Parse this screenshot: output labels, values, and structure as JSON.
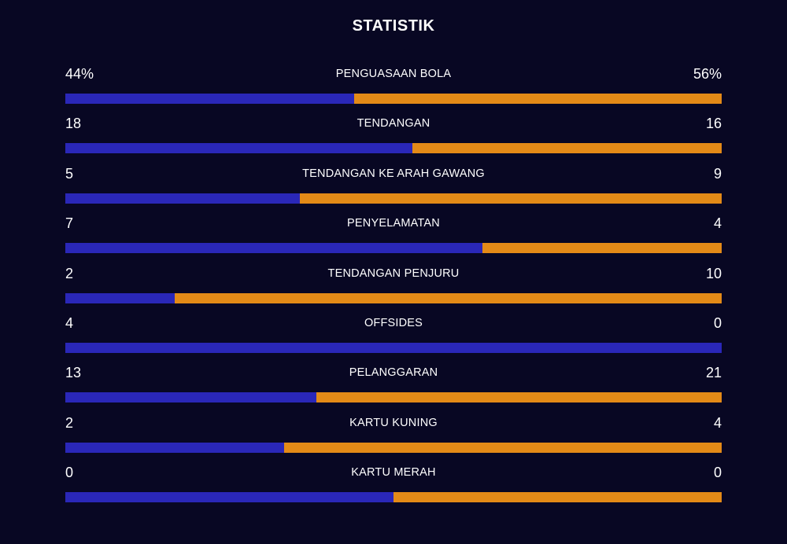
{
  "title": "STATISTIK",
  "colors": {
    "home": "#2a27b8",
    "away": "#e38a17",
    "background": "#080723"
  },
  "stats": [
    {
      "label": "PENGUASAAN BOLA",
      "home": "44%",
      "away": "56%",
      "home_share": 0.44
    },
    {
      "label": "TENDANGAN",
      "home": "18",
      "away": "16",
      "home_share": 0.529
    },
    {
      "label": "TENDANGAN KE ARAH GAWANG",
      "home": "5",
      "away": "9",
      "home_share": 0.357
    },
    {
      "label": "PENYELAMATAN",
      "home": "7",
      "away": "4",
      "home_share": 0.636
    },
    {
      "label": "TENDANGAN PENJURU",
      "home": "2",
      "away": "10",
      "home_share": 0.167
    },
    {
      "label": "OFFSIDES",
      "home": "4",
      "away": "0",
      "home_share": 1.0
    },
    {
      "label": "PELANGGARAN",
      "home": "13",
      "away": "21",
      "home_share": 0.382
    },
    {
      "label": "KARTU KUNING",
      "home": "2",
      "away": "4",
      "home_share": 0.333
    },
    {
      "label": "KARTU MERAH",
      "home": "0",
      "away": "0",
      "home_share": 0.5
    }
  ]
}
